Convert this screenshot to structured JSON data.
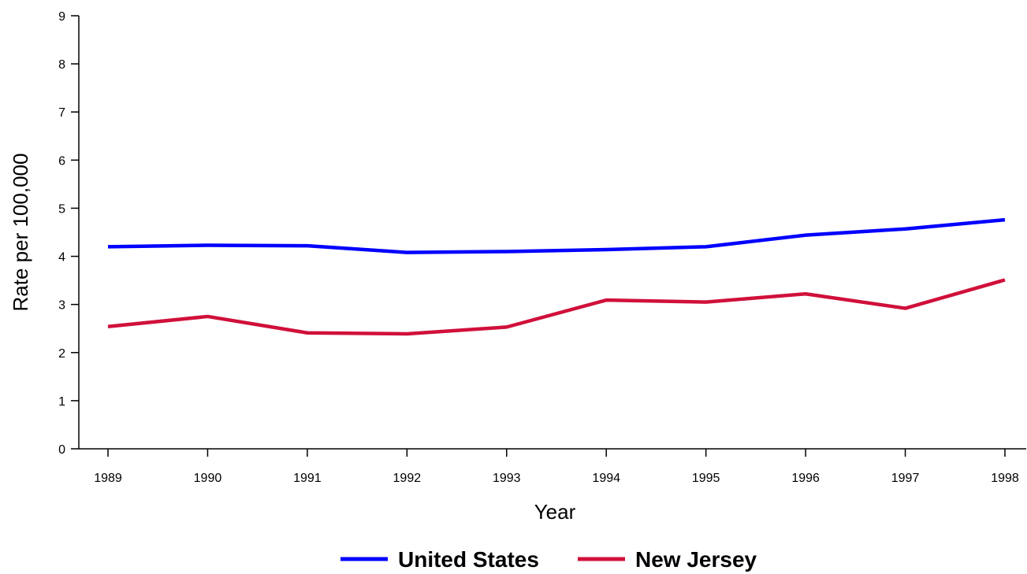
{
  "chart_data": {
    "type": "line",
    "title": "",
    "xlabel": "Year",
    "ylabel": "Rate per 100,000",
    "x": [
      "1989",
      "1990",
      "1991",
      "1992",
      "1993",
      "1994",
      "1995",
      "1996",
      "1997",
      "1998"
    ],
    "ylim": [
      0,
      9
    ],
    "y_ticks": [
      "0",
      "1",
      "2",
      "3",
      "4",
      "5",
      "6",
      "7",
      "8",
      "9"
    ],
    "grid": false,
    "legend_position": "bottom",
    "series": [
      {
        "name": "United States",
        "color": "#0000ff",
        "values": [
          4.2,
          4.23,
          4.22,
          4.08,
          4.1,
          4.14,
          4.2,
          4.44,
          4.57,
          4.76
        ]
      },
      {
        "name": "New Jersey",
        "color": "#d0103a",
        "values": [
          2.54,
          2.75,
          2.41,
          2.39,
          2.53,
          3.09,
          3.05,
          3.22,
          2.92,
          3.51
        ]
      }
    ]
  }
}
